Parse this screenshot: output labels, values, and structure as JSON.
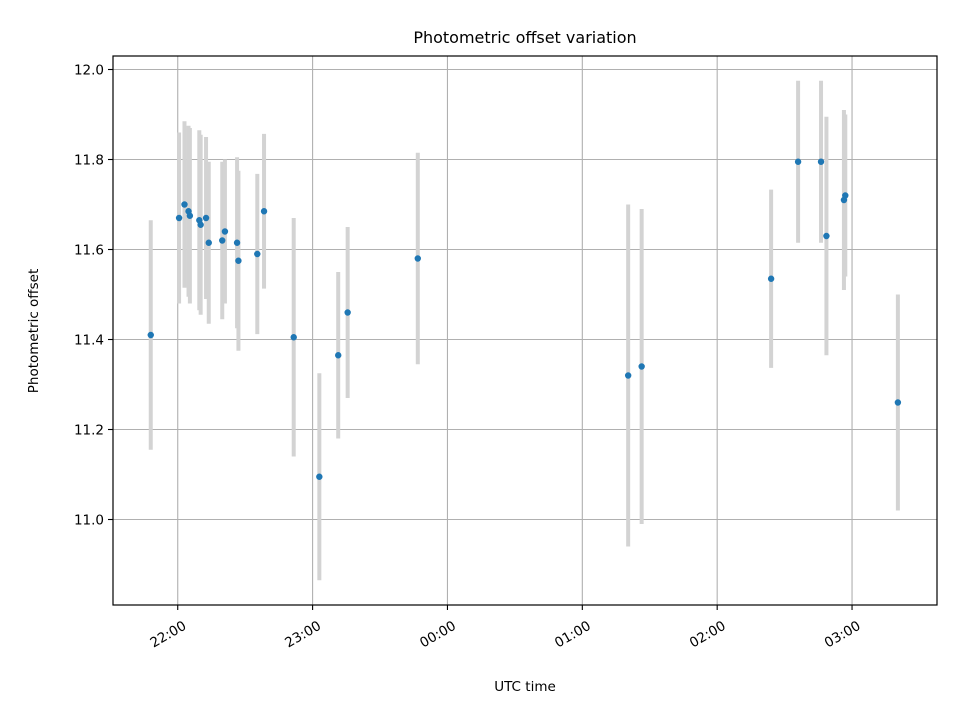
{
  "chart_data": {
    "type": "scatter",
    "title": "Photometric offset variation",
    "xlabel": "UTC time",
    "ylabel": "Photometric offset",
    "x_unit": "hours (UTC, after midnight > 24)",
    "x_ticks": [
      {
        "value": 22,
        "label": "22:00"
      },
      {
        "value": 23,
        "label": "23:00"
      },
      {
        "value": 24,
        "label": "00:00"
      },
      {
        "value": 25,
        "label": "01:00"
      },
      {
        "value": 26,
        "label": "02:00"
      },
      {
        "value": 27,
        "label": "03:00"
      }
    ],
    "y_ticks": [
      {
        "value": 11.0,
        "label": "11.0"
      },
      {
        "value": 11.2,
        "label": "11.2"
      },
      {
        "value": 11.4,
        "label": "11.4"
      },
      {
        "value": 11.6,
        "label": "11.6"
      },
      {
        "value": 11.8,
        "label": "11.8"
      },
      {
        "value": 12.0,
        "label": "12.0"
      }
    ],
    "xlim": [
      21.52,
      27.63
    ],
    "ylim": [
      10.81,
      12.03
    ],
    "grid": true,
    "legend": "none",
    "colors": {
      "marker": "#1f77b4",
      "errorbar": "#d3d3d3"
    },
    "points": [
      {
        "x": 21.8,
        "y": 11.41,
        "err": 0.255
      },
      {
        "x": 22.01,
        "y": 11.67,
        "err": 0.19
      },
      {
        "x": 22.05,
        "y": 11.7,
        "err": 0.185
      },
      {
        "x": 22.08,
        "y": 11.685,
        "err": 0.19
      },
      {
        "x": 22.09,
        "y": 11.675,
        "err": 0.195
      },
      {
        "x": 22.16,
        "y": 11.665,
        "err": 0.2
      },
      {
        "x": 22.17,
        "y": 11.655,
        "err": 0.2
      },
      {
        "x": 22.21,
        "y": 11.67,
        "err": 0.18
      },
      {
        "x": 22.23,
        "y": 11.615,
        "err": 0.18
      },
      {
        "x": 22.33,
        "y": 11.62,
        "err": 0.175
      },
      {
        "x": 22.35,
        "y": 11.64,
        "err": 0.16
      },
      {
        "x": 22.44,
        "y": 11.615,
        "err": 0.19
      },
      {
        "x": 22.45,
        "y": 11.575,
        "err": 0.2
      },
      {
        "x": 22.59,
        "y": 11.59,
        "err": 0.178
      },
      {
        "x": 22.64,
        "y": 11.685,
        "err": 0.172
      },
      {
        "x": 22.86,
        "y": 11.405,
        "err": 0.265
      },
      {
        "x": 23.05,
        "y": 11.095,
        "err": 0.23
      },
      {
        "x": 23.19,
        "y": 11.365,
        "err": 0.185
      },
      {
        "x": 23.26,
        "y": 11.46,
        "err": 0.19
      },
      {
        "x": 23.78,
        "y": 11.58,
        "err": 0.235
      },
      {
        "x": 25.34,
        "y": 11.32,
        "err": 0.38
      },
      {
        "x": 25.44,
        "y": 11.34,
        "err": 0.35
      },
      {
        "x": 26.4,
        "y": 11.535,
        "err": 0.198
      },
      {
        "x": 26.6,
        "y": 11.795,
        "err": 0.18
      },
      {
        "x": 26.77,
        "y": 11.795,
        "err": 0.18
      },
      {
        "x": 26.81,
        "y": 11.63,
        "err": 0.265
      },
      {
        "x": 26.94,
        "y": 11.71,
        "err": 0.2
      },
      {
        "x": 26.95,
        "y": 11.72,
        "err": 0.18
      },
      {
        "x": 27.34,
        "y": 11.26,
        "err": 0.24
      }
    ]
  }
}
